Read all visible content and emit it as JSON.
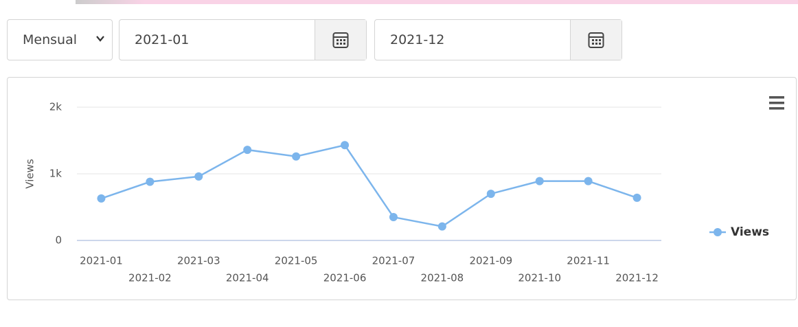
{
  "controls": {
    "period": "Mensual",
    "start": "2021-01",
    "end": "2021-12"
  },
  "chart_data": {
    "type": "line",
    "y_label": "Views",
    "categories": [
      "2021-01",
      "2021-02",
      "2021-03",
      "2021-04",
      "2021-05",
      "2021-06",
      "2021-07",
      "2021-08",
      "2021-09",
      "2021-10",
      "2021-11",
      "2021-12"
    ],
    "series": [
      {
        "name": "Views",
        "color": "#7cb5ec",
        "values": [
          630,
          880,
          960,
          1360,
          1260,
          1430,
          350,
          210,
          700,
          890,
          890,
          640
        ]
      }
    ],
    "ylim": [
      0,
      2000
    ],
    "yticks": [
      0,
      {
        "value": 1000,
        "label": "1k"
      },
      {
        "value": 2000,
        "label": "2k"
      }
    ],
    "grid": true,
    "legend": "right"
  }
}
